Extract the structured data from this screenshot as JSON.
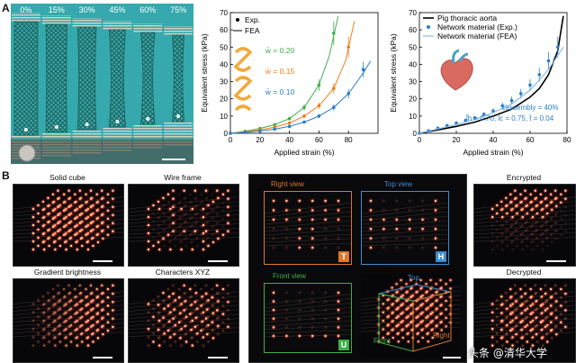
{
  "panel_a": {
    "letter": "A",
    "strain_labels": [
      "0%",
      "15%",
      "30%",
      "45%",
      "60%",
      "75%"
    ]
  },
  "panel_b": {
    "letter": "B",
    "labels": {
      "solid_cube": "Solid cube",
      "wire_frame": "Wire frame",
      "gradient": "Gradient brightness",
      "characters": "Characters XYZ",
      "encrypted": "Encrypted",
      "decrypted": "Decrypted"
    },
    "views": {
      "right": "Right view",
      "top": "Top view",
      "front": "Front view",
      "badge_right": "T",
      "badge_top": "H",
      "badge_front": "U",
      "cube_top": "Top",
      "cube_front": "Front",
      "cube_right": "Right"
    },
    "colors": {
      "right": "#d9782e",
      "top": "#3c8ed0",
      "front": "#3fae4a"
    }
  },
  "watermark": "头条 @清华大学",
  "chart_data": [
    {
      "type": "scatter",
      "xlabel": "Applied strain (%)",
      "ylabel": "Equivalent stress (kPa)",
      "xlim": [
        0,
        100
      ],
      "ylim": [
        0,
        70
      ],
      "xticks": [
        0,
        20,
        40,
        60,
        80
      ],
      "yticks": [
        0,
        10,
        20,
        30,
        40,
        50,
        60,
        70
      ],
      "legend": [
        "Exp.",
        "FEA"
      ],
      "legend_position": "top-left",
      "series": [
        {
          "name": "w̄ = 0.20",
          "color": "#3fae4a",
          "x": [
            0,
            10,
            20,
            30,
            40,
            50,
            60,
            70
          ],
          "y": [
            0,
            1.2,
            2.8,
            5,
            8.5,
            15,
            28,
            58
          ],
          "fea_x": [
            0,
            10,
            20,
            30,
            40,
            50,
            60,
            67,
            73
          ],
          "fea_y": [
            0,
            1.2,
            2.8,
            5,
            8.5,
            15,
            28,
            45,
            68
          ]
        },
        {
          "name": "w̄ = 0.15",
          "color": "#ef7d1e",
          "x": [
            0,
            10,
            20,
            30,
            40,
            50,
            60,
            70,
            80
          ],
          "y": [
            0,
            0.8,
            2,
            3.6,
            6,
            10,
            16,
            26,
            50
          ],
          "fea_x": [
            0,
            10,
            20,
            30,
            40,
            50,
            60,
            70,
            78,
            84
          ],
          "fea_y": [
            0,
            0.8,
            2,
            3.6,
            6,
            10,
            16,
            26,
            42,
            65
          ]
        },
        {
          "name": "w̄ = 0.10",
          "color": "#2b7dc8",
          "x": [
            0,
            10,
            20,
            30,
            40,
            50,
            60,
            70,
            80,
            90
          ],
          "y": [
            0,
            0.5,
            1.3,
            2.4,
            4,
            6.5,
            10,
            15,
            23,
            37
          ],
          "fea_x": [
            0,
            10,
            20,
            30,
            40,
            50,
            60,
            70,
            80,
            90,
            95
          ],
          "fea_y": [
            0,
            0.5,
            1.3,
            2.4,
            4,
            6.5,
            10,
            15,
            23,
            35,
            42
          ]
        }
      ]
    },
    {
      "type": "line",
      "xlabel": "Applied strain (%)",
      "ylabel": "Equivalent stress (kPa)",
      "xlim": [
        0,
        80
      ],
      "ylim": [
        0,
        70
      ],
      "xticks": [
        0,
        20,
        40,
        60,
        80
      ],
      "yticks": [
        0,
        10,
        20,
        30,
        40,
        50,
        60,
        70
      ],
      "legend_position": "top-left",
      "annotation": "ε̄assembly = 40%",
      "params": "l̄h = 0.70, l̄c = 0.75, t̄ = 0.04",
      "series": [
        {
          "name": "Pig thoracic aorta",
          "color": "#000000",
          "x": [
            0,
            10,
            20,
            30,
            40,
            50,
            60,
            65,
            70,
            75,
            78
          ],
          "y": [
            0,
            2,
            4,
            6.5,
            10,
            14,
            21,
            26,
            34,
            48,
            68
          ]
        },
        {
          "name": "Network material (Exp.)",
          "color": "#2b7dc8",
          "x": [
            0,
            5,
            10,
            15,
            20,
            25,
            30,
            35,
            40,
            45,
            50,
            55,
            60,
            65,
            70,
            75
          ],
          "y": [
            0,
            1.5,
            3,
            4.5,
            6,
            7.5,
            9,
            11,
            13,
            16,
            19,
            23,
            28,
            34,
            42,
            50
          ]
        },
        {
          "name": "Network material (FEA)",
          "color": "#7fb8e8",
          "x": [
            0,
            10,
            20,
            30,
            40,
            50,
            60,
            70,
            78
          ],
          "y": [
            0,
            2.5,
            5,
            8,
            12,
            17,
            25,
            37,
            50
          ]
        }
      ]
    }
  ]
}
